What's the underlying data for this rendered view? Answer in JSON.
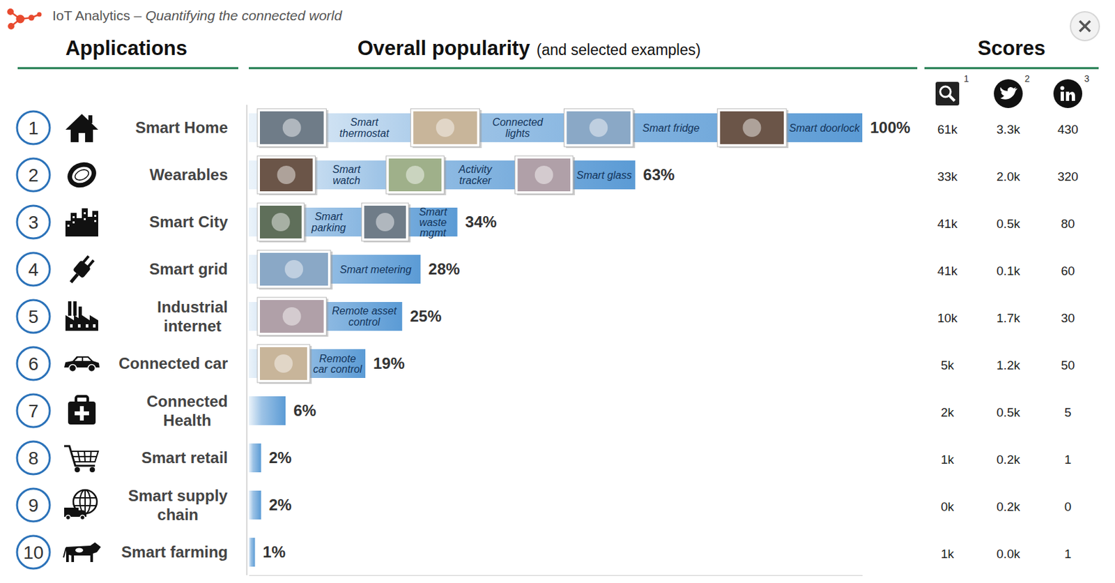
{
  "header": {
    "brand": "IoT Analytics –",
    "tagline": "Quantifying the connected world"
  },
  "applications": {
    "title": "Applications",
    "ranks": [
      1,
      2,
      3,
      4,
      5,
      6,
      7,
      8,
      9,
      10
    ]
  },
  "chart_data": {
    "type": "bar",
    "orientation": "horizontal",
    "title": "Overall popularity",
    "subtitle": "(and selected examples)",
    "categories": [
      "Smart Home",
      "Wearables",
      "Smart City",
      "Smart grid",
      "Industrial internet",
      "Connected car",
      "Connected Health",
      "Smart retail",
      "Smart supply chain",
      "Smart farming"
    ],
    "values": [
      100,
      63,
      34,
      28,
      25,
      19,
      6,
      2,
      2,
      1
    ],
    "value_labels": [
      "100%",
      "63%",
      "34%",
      "28%",
      "25%",
      "19%",
      "6%",
      "2%",
      "2%",
      "1%"
    ],
    "data_labels": true,
    "examples": [
      [
        "Smart thermostat",
        "Connected lights",
        "Smart fridge",
        "Smart doorlock"
      ],
      [
        "Smart watch",
        "Activity tracker",
        "Smart glass"
      ],
      [
        "Smart parking",
        "Smart waste mgmt"
      ],
      [
        "Smart metering"
      ],
      [
        "Remote asset control"
      ],
      [
        "Remote car control"
      ],
      [],
      [],
      [],
      []
    ],
    "color": "#5b9bd5",
    "xlim": [
      0,
      100
    ],
    "tick_labels": false
  },
  "scores": {
    "title": "Scores",
    "notes": [
      1,
      2,
      3
    ],
    "rows": [
      [
        "61k",
        "3.3k",
        "430"
      ],
      [
        "33k",
        "2.0k",
        "320"
      ],
      [
        "41k",
        "0.5k",
        "80"
      ],
      [
        "41k",
        "0.1k",
        "60"
      ],
      [
        "10k",
        "1.7k",
        "30"
      ],
      [
        "5k",
        "1.2k",
        "50"
      ],
      [
        "2k",
        "0.5k",
        "5"
      ],
      [
        "1k",
        "0.2k",
        "1"
      ],
      [
        "0k",
        "0.2k",
        "0"
      ],
      [
        "1k",
        "0.0k",
        "1"
      ]
    ]
  }
}
